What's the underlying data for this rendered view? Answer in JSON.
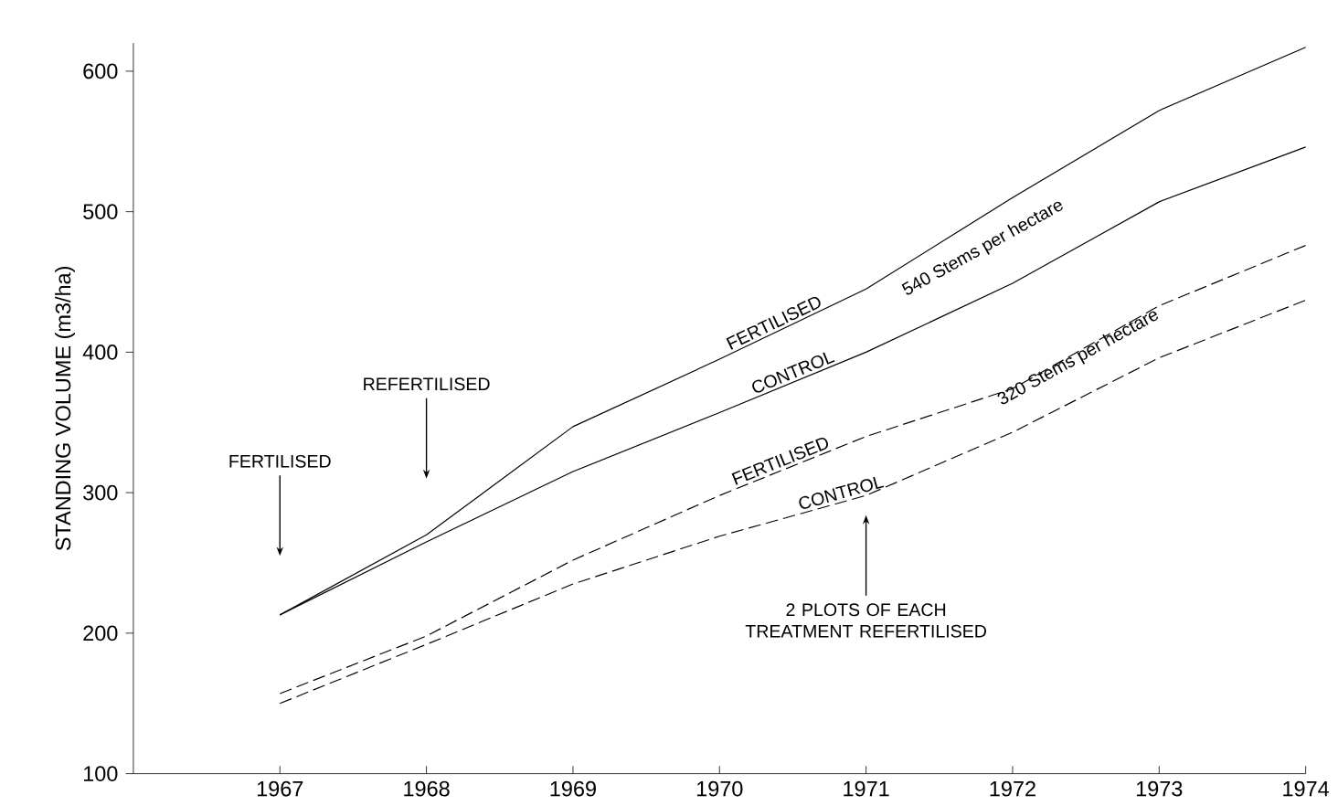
{
  "chart_data": {
    "type": "line",
    "ylabel": "STANDING VOLUME (m3/ha)",
    "x": [
      1967,
      1968,
      1969,
      1970,
      1971,
      1972,
      1973,
      1974
    ],
    "xlim": [
      1966,
      1974
    ],
    "xticks": [
      1967,
      1968,
      1969,
      1970,
      1971,
      1972,
      1973,
      1974
    ],
    "ylim": [
      100,
      620
    ],
    "yticks": [
      100,
      200,
      300,
      400,
      500,
      600
    ],
    "grid": false,
    "legend": false,
    "marker": "none",
    "series": [
      {
        "name": "FERTILISED",
        "color": "#000000",
        "line_style": "solid",
        "values": [
          213,
          270,
          347,
          395,
          445,
          510,
          572,
          617
        ]
      },
      {
        "name": "CONTROL",
        "color": "#000000",
        "line_style": "solid",
        "values": [
          213,
          265,
          315,
          357,
          400,
          449,
          507,
          546
        ]
      },
      {
        "name": "FERTILISED",
        "color": "#000000",
        "line_style": "dashed",
        "values": [
          157,
          198,
          252,
          298,
          340,
          374,
          433,
          476
        ]
      },
      {
        "name": "CONTROL",
        "color": "#000000",
        "line_style": "dashed",
        "values": [
          150,
          192,
          235,
          269,
          298,
          343,
          396,
          437
        ]
      }
    ],
    "annotations": [
      "FERTILISED",
      "REFERTILISED",
      "2 PLOTS OF EACH TREATMENT REFERTILISED",
      "540 Stems per hectare",
      "320 Stems per hectare"
    ]
  }
}
